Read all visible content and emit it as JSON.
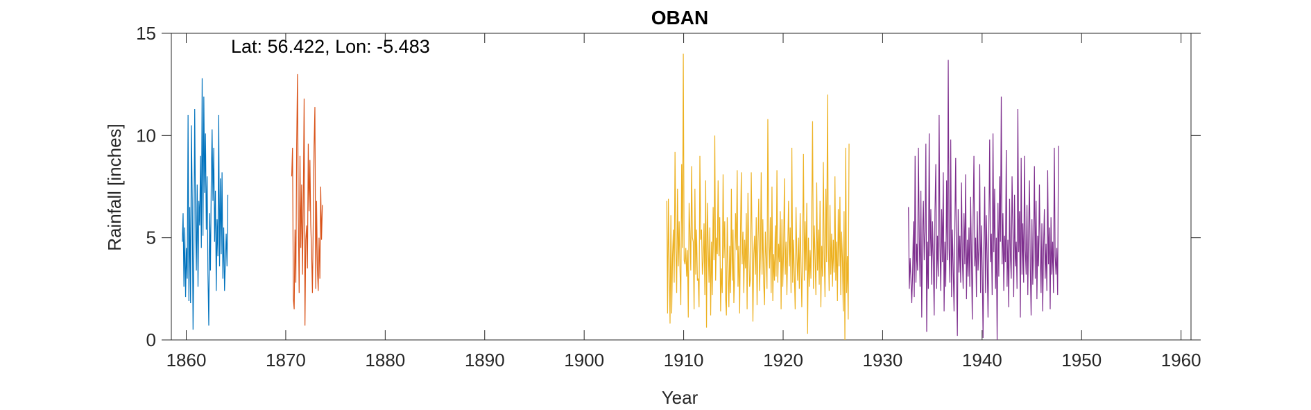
{
  "chart_data": {
    "type": "line",
    "title": "OBAN",
    "xlabel": "Year",
    "ylabel": "Rainfall [inches]",
    "annotation": "Lat: 56.422, Lon: -5.483",
    "xlim": [
      1858.5,
      1961
    ],
    "ylim": [
      0,
      15
    ],
    "xticks": [
      1860,
      1870,
      1880,
      1890,
      1900,
      1910,
      1920,
      1930,
      1940,
      1950,
      1960
    ],
    "yticks": [
      0,
      5,
      10,
      15
    ],
    "grid": false,
    "legend": "none",
    "series": [
      {
        "color": "#0072BD",
        "start": 1859.6,
        "step": 0.0833,
        "values": [
          4.8,
          6.2,
          2.6,
          5.5,
          2.1,
          4.5,
          3.0,
          11.0,
          1.9,
          6.5,
          1.8,
          10.5,
          6.9,
          0.5,
          4.2,
          11.3,
          5.8,
          3.4,
          7.6,
          2.6,
          6.8,
          5.6,
          9.0,
          4.5,
          12.8,
          5.1,
          11.9,
          7.2,
          10.1,
          5.4,
          8.0,
          3.2,
          0.7,
          6.2,
          3.4,
          7.8,
          10.3,
          6.8,
          9.4,
          4.8,
          7.3,
          2.4,
          5.9,
          4.1,
          11.0,
          3.6,
          7.9,
          4.2,
          8.2,
          3.0,
          5.5,
          2.4,
          3.8,
          5.2,
          3.6,
          7.1
        ]
      },
      {
        "color": "#D95319",
        "start": 1870.6,
        "step": 0.0833,
        "values": [
          8.0,
          9.4,
          2.0,
          1.5,
          5.4,
          2.8,
          9.5,
          13.0,
          6.0,
          2.3,
          9.0,
          4.5,
          7.6,
          3.2,
          6.9,
          11.8,
          0.7,
          4.9,
          5.6,
          3.5,
          9.6,
          6.3,
          8.8,
          5.6,
          4.3,
          2.3,
          5.8,
          9.5,
          11.4,
          2.5,
          6.8,
          3.5,
          2.4,
          5.0,
          3.0,
          7.5,
          4.9,
          6.6
        ]
      },
      {
        "color": "#EDB120",
        "start": 1908.3,
        "step": 0.0833,
        "values": [
          6.8,
          1.3,
          6.9,
          3.4,
          0.8,
          6.1,
          1.3,
          4.1,
          5.4,
          2.8,
          9.2,
          4.6,
          2.3,
          7.4,
          3.6,
          5.8,
          3.4,
          1.7,
          8.6,
          4.5,
          14.0,
          3.9,
          3.7,
          4.5,
          3.1,
          4.4,
          1.1,
          6.7,
          5.3,
          3.4,
          8.5,
          5.0,
          4.8,
          1.5,
          7.4,
          3.2,
          5.4,
          2.9,
          3.0,
          1.6,
          9.0,
          4.9,
          5.4,
          3.2,
          3.9,
          5.7,
          2.2,
          7.8,
          0.6,
          6.7,
          4.7,
          2.8,
          5.5,
          1.2,
          4.8,
          2.2,
          6.5,
          3.9,
          10.0,
          2.9,
          5.0,
          4.2,
          7.8,
          4.1,
          6.0,
          1.4,
          3.5,
          2.3,
          8.1,
          4.0,
          5.8,
          2.1,
          1.2,
          6.0,
          3.5,
          1.6,
          4.6,
          2.3,
          7.4,
          2.9,
          5.4,
          1.8,
          3.2,
          6.2,
          4.4,
          8.3,
          2.6,
          4.6,
          1.3,
          5.3,
          8.2,
          3.7,
          5.3,
          2.3,
          4.9,
          3.5,
          6.2,
          1.5,
          7.2,
          4.4,
          2.6,
          3.0,
          8.2,
          4.8,
          0.9,
          4.2,
          5.1,
          3.2,
          6.0,
          1.7,
          4.8,
          6.9,
          2.4,
          4.0,
          8.2,
          3.2,
          5.9,
          2.8,
          1.7,
          5.3,
          4.0,
          2.5,
          10.8,
          4.8,
          3.5,
          6.0,
          2.3,
          7.5,
          1.9,
          4.2,
          2.9,
          5.6,
          3.1,
          8.3,
          2.8,
          4.7,
          3.8,
          6.3,
          1.5,
          5.9,
          2.6,
          4.3,
          7.9,
          3.2,
          4.8,
          2.2,
          4.4,
          6.8,
          3.6,
          5.5,
          2.3,
          9.4,
          2.8,
          4.9,
          3.2,
          1.5,
          6.5,
          4.2,
          2.9,
          5.0,
          2.5,
          6.2,
          3.8,
          1.6,
          4.7,
          9.1,
          2.9,
          5.8,
          3.4,
          6.7,
          0.3,
          5.0,
          2.6,
          4.4,
          3.0,
          6.3,
          10.7,
          2.5,
          5.6,
          4.1,
          2.2,
          7.7,
          3.4,
          5.4,
          2.7,
          6.8,
          1.6,
          4.6,
          3.1,
          8.7,
          4.2,
          2.1,
          7.4,
          3.8,
          12.0,
          4.7,
          2.4,
          6.6,
          3.2,
          5.2,
          2.6,
          4.9,
          3.3,
          8.0,
          2.9,
          4.8,
          1.9,
          6.4,
          3.6,
          7.0,
          2.2,
          5.3,
          4.0,
          1.4,
          6.3,
          0.0,
          9.4,
          2.3,
          4.1,
          1.0,
          9.6
        ]
      },
      {
        "color": "#7E2F8E",
        "start": 1932.6,
        "step": 0.0833,
        "values": [
          6.5,
          2.5,
          4.0,
          2.9,
          1.8,
          3.3,
          5.8,
          2.1,
          9.0,
          2.8,
          4.7,
          3.4,
          9.4,
          5.0,
          2.6,
          7.3,
          1.1,
          5.3,
          6.8,
          3.9,
          5.3,
          9.6,
          0.4,
          4.8,
          2.5,
          10.1,
          4.1,
          6.4,
          2.7,
          5.8,
          3.9,
          1.2,
          6.3,
          8.6,
          2.5,
          5.1,
          3.1,
          11.0,
          4.6,
          2.4,
          6.4,
          3.8,
          8.2,
          1.4,
          4.8,
          2.6,
          7.8,
          3.9,
          13.7,
          4.5,
          2.8,
          9.8,
          2.1,
          5.4,
          3.5,
          1.4,
          5.7,
          8.9,
          3.0,
          0.2,
          6.4,
          3.3,
          5.1,
          2.8,
          7.7,
          4.0,
          2.5,
          6.2,
          3.7,
          8.1,
          2.0,
          4.9,
          3.1,
          5.5,
          2.6,
          7.0,
          4.0,
          1.0,
          5.9,
          9.0,
          3.6,
          5.0,
          2.1,
          6.3,
          3.4,
          4.5,
          8.6,
          2.3,
          5.6,
          3.5,
          0.1,
          4.6,
          7.5,
          2.3,
          6.1,
          3.9,
          1.1,
          5.3,
          9.8,
          3.8,
          5.2,
          2.2,
          10.1,
          4.3,
          7.4,
          2.5,
          5.0,
          0.0,
          6.7,
          3.1,
          8.0,
          4.8,
          11.9,
          3.7,
          6.2,
          2.4,
          5.1,
          3.8,
          9.3,
          2.6,
          4.9,
          1.6,
          6.9,
          4.1,
          3.0,
          8.0,
          5.4,
          2.1,
          7.1,
          3.6,
          4.8,
          2.5,
          11.3,
          4.3,
          6.3,
          1.1,
          8.9,
          3.2,
          5.7,
          2.8,
          9.0,
          4.4,
          3.2,
          6.6,
          2.2,
          5.4,
          7.8,
          3.5,
          1.2,
          5.9,
          2.7,
          4.6,
          8.5,
          3.0,
          6.8,
          2.0,
          5.1,
          3.6,
          7.6,
          4.2,
          2.3,
          5.7,
          1.4,
          4.5,
          6.4,
          3.0,
          4.7,
          2.4,
          8.3,
          3.7,
          5.5,
          1.5,
          6.0,
          3.2,
          4.8,
          2.3,
          9.4,
          4.1,
          3.2,
          4.5,
          2.2,
          9.5
        ]
      }
    ]
  }
}
